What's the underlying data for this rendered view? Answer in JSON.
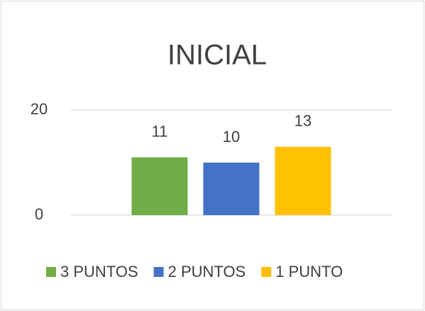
{
  "chart_data": {
    "type": "bar",
    "title": "INICIAL",
    "categories": [
      null
    ],
    "series": [
      {
        "name": "3 PUNTOS",
        "color": "#70ad47",
        "values": [
          11
        ]
      },
      {
        "name": "2 PUNTOS",
        "color": "#4472c4",
        "values": [
          10
        ]
      },
      {
        "name": "1 PUNTO",
        "color": "#ffc000",
        "values": [
          13
        ]
      }
    ],
    "ylim": [
      0,
      20
    ],
    "yticks": [
      0,
      20
    ],
    "grid": true,
    "legend": "bottom"
  }
}
